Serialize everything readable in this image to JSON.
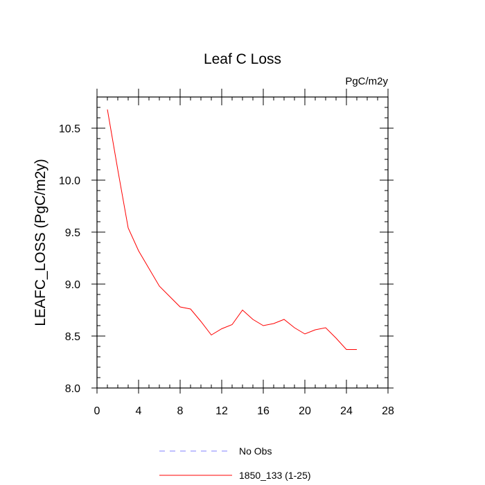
{
  "chart_data": {
    "type": "line",
    "title": "Leaf C Loss",
    "units_label": "PgC/m2y",
    "xlabel": "",
    "ylabel": "LEAFC_LOSS  (PgC/m2y)",
    "xlim": [
      0,
      28
    ],
    "ylim": [
      8.0,
      10.8
    ],
    "x_ticks": [
      0,
      4,
      8,
      12,
      16,
      20,
      24,
      28
    ],
    "x_tick_labels": [
      "0",
      "4",
      "8",
      "12",
      "16",
      "20",
      "24",
      "28"
    ],
    "y_ticks": [
      8.0,
      8.5,
      9.0,
      9.5,
      10.0,
      10.5
    ],
    "y_tick_labels": [
      "8.0",
      "8.5",
      "9.0",
      "9.5",
      "10.0",
      "10.5"
    ],
    "grid": false,
    "legend_position": "bottom",
    "series": [
      {
        "name": "1850_133 (1-25)",
        "color": "#ff0000",
        "dash": "solid",
        "x": [
          1,
          2,
          3,
          4,
          5,
          6,
          7,
          8,
          9,
          10,
          11,
          12,
          13,
          14,
          15,
          16,
          17,
          18,
          19,
          20,
          21,
          22,
          23,
          24,
          25
        ],
        "values": [
          10.68,
          10.1,
          9.54,
          9.32,
          9.15,
          8.98,
          8.88,
          8.78,
          8.76,
          8.64,
          8.51,
          8.57,
          8.61,
          8.75,
          8.66,
          8.6,
          8.62,
          8.66,
          8.58,
          8.52,
          8.56,
          8.58,
          8.48,
          8.37,
          8.37
        ]
      }
    ],
    "legend": [
      {
        "label": "No Obs",
        "color": "#8080ff",
        "dash": "dashed"
      },
      {
        "label": "1850_133 (1-25)",
        "color": "#ff0000",
        "dash": "solid"
      }
    ]
  }
}
